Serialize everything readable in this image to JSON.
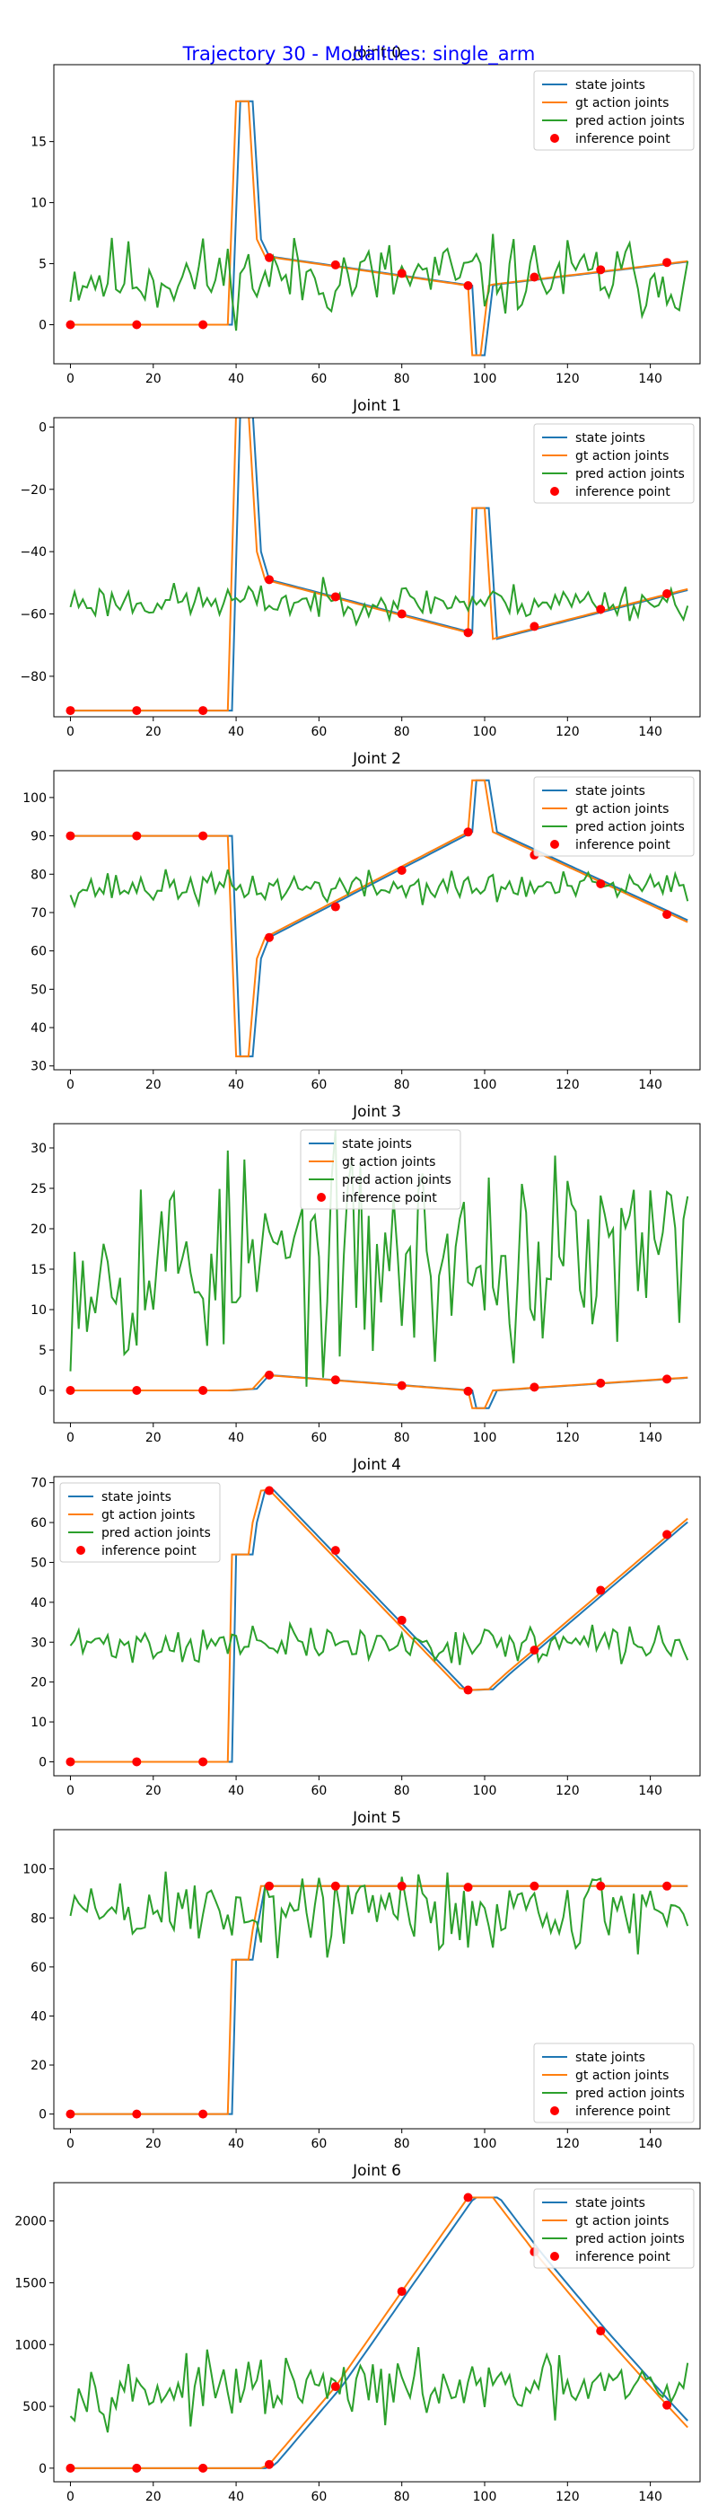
{
  "figure": {
    "title": "Trajectory 30 - Modalities: single_arm",
    "title_color": "#0000ff"
  },
  "colors": {
    "state": "#1f77b4",
    "gt": "#ff7f0e",
    "pred": "#2ca02c",
    "inference": "#ff0000"
  },
  "legend_labels": [
    "state joints",
    "gt action joints",
    "pred action joints",
    "inference point"
  ],
  "inference_x": [
    0,
    16,
    32,
    48,
    64,
    80,
    96,
    112,
    128,
    144
  ],
  "chart_data": [
    {
      "type": "line",
      "title": "Joint 0",
      "xlim": [
        -4,
        152
      ],
      "ylim": [
        -3.2,
        21.3
      ],
      "xticks": [
        0,
        20,
        40,
        60,
        80,
        100,
        120,
        140
      ],
      "yticks": [
        0,
        5,
        10,
        15
      ],
      "legend": "top-right",
      "gt_knots": [
        [
          0,
          0
        ],
        [
          38,
          0
        ],
        [
          40,
          18.3
        ],
        [
          43,
          18.3
        ],
        [
          45,
          7
        ],
        [
          47,
          5.6
        ],
        [
          96,
          3.2
        ],
        [
          97,
          -2.5
        ],
        [
          99,
          -2.5
        ],
        [
          101,
          3.2
        ],
        [
          102,
          3.3
        ],
        [
          149,
          5.2
        ]
      ],
      "state_lag": 1,
      "inference_y": [
        0,
        0,
        0,
        5.5,
        4.9,
        4.2,
        3.2,
        3.9,
        4.5,
        5.1
      ],
      "pred_mean": 3.9,
      "pred_amp": 1.6,
      "pred_seed": 11
    },
    {
      "type": "line",
      "title": "Joint 1",
      "xlim": [
        -4,
        152
      ],
      "ylim": [
        -93,
        3
      ],
      "xticks": [
        0,
        20,
        40,
        60,
        80,
        100,
        120,
        140
      ],
      "yticks": [
        -80,
        -60,
        -40,
        -20,
        0
      ],
      "legend": "top-right",
      "gt_knots": [
        [
          0,
          -91
        ],
        [
          38,
          -91
        ],
        [
          40,
          5
        ],
        [
          43,
          5
        ],
        [
          45,
          -40
        ],
        [
          47,
          -49
        ],
        [
          96,
          -66
        ],
        [
          97,
          -26
        ],
        [
          100,
          -26
        ],
        [
          102,
          -68
        ],
        [
          149,
          -52
        ]
      ],
      "state_lag": 1,
      "inference_y": [
        -91,
        -91,
        -91,
        -49,
        -54.5,
        -60,
        -66,
        -64,
        -58.5,
        -53.5
      ],
      "pred_mean": -56,
      "pred_amp": 2.8,
      "pred_seed": 23
    },
    {
      "type": "line",
      "title": "Joint 2",
      "xlim": [
        -4,
        152
      ],
      "ylim": [
        29,
        107
      ],
      "xticks": [
        0,
        20,
        40,
        60,
        80,
        100,
        120,
        140
      ],
      "yticks": [
        30,
        40,
        50,
        60,
        70,
        80,
        90,
        100
      ],
      "legend": "top-right",
      "gt_knots": [
        [
          0,
          90
        ],
        [
          38,
          90
        ],
        [
          40,
          32.5
        ],
        [
          43,
          32.5
        ],
        [
          45,
          58
        ],
        [
          47,
          63.5
        ],
        [
          96,
          91
        ],
        [
          97,
          104.5
        ],
        [
          100,
          104.5
        ],
        [
          102,
          91
        ],
        [
          149,
          67.5
        ]
      ],
      "state_lag": 1,
      "inference_y": [
        90,
        90,
        90,
        63.5,
        71.5,
        81,
        91,
        85,
        77.5,
        69.5
      ],
      "pred_mean": 76.5,
      "pred_amp": 2.1,
      "pred_seed": 37
    },
    {
      "type": "line",
      "title": "Joint 3",
      "xlim": [
        -4,
        152
      ],
      "ylim": [
        -4,
        33
      ],
      "xticks": [
        0,
        20,
        40,
        60,
        80,
        100,
        120,
        140
      ],
      "yticks": [
        0,
        5,
        10,
        15,
        20,
        25,
        30
      ],
      "legend": "top-center",
      "gt_knots": [
        [
          0,
          0
        ],
        [
          38,
          0
        ],
        [
          44,
          0.2
        ],
        [
          47,
          1.9
        ],
        [
          96,
          0
        ],
        [
          97,
          -2.2
        ],
        [
          100,
          -2.2
        ],
        [
          102,
          0
        ],
        [
          149,
          1.6
        ]
      ],
      "state_lag": 1,
      "inference_y": [
        0,
        0,
        0,
        1.9,
        1.3,
        0.6,
        -0.1,
        0.4,
        0.9,
        1.4
      ],
      "pred_mean": 16,
      "pred_amp": 6.5,
      "pred_seed": 53
    },
    {
      "type": "line",
      "title": "Joint 4",
      "xlim": [
        -4,
        152
      ],
      "ylim": [
        -3.5,
        71.5
      ],
      "xticks": [
        0,
        20,
        40,
        60,
        80,
        100,
        120,
        140
      ],
      "yticks": [
        0,
        10,
        20,
        30,
        40,
        50,
        60,
        70
      ],
      "legend": "top-left",
      "gt_knots": [
        [
          0,
          0
        ],
        [
          38,
          0
        ],
        [
          39,
          52
        ],
        [
          43,
          52
        ],
        [
          44,
          60
        ],
        [
          46,
          68
        ],
        [
          48,
          68.2
        ],
        [
          94,
          18.5
        ],
        [
          96,
          18
        ],
        [
          101,
          18.2
        ],
        [
          105,
          22
        ],
        [
          149,
          61
        ]
      ],
      "state_lag": 1,
      "inference_y": [
        0,
        0,
        0,
        68,
        53,
        35.5,
        18,
        28,
        43,
        57
      ],
      "pred_mean": 29.5,
      "pred_amp": 2.3,
      "pred_seed": 71
    },
    {
      "type": "line",
      "title": "Joint 5",
      "xlim": [
        -4,
        152
      ],
      "ylim": [
        -6,
        116
      ],
      "xticks": [
        0,
        20,
        40,
        60,
        80,
        100,
        120,
        140
      ],
      "yticks": [
        0,
        20,
        40,
        60,
        80,
        100
      ],
      "legend": "bottom-right",
      "gt_knots": [
        [
          0,
          0
        ],
        [
          38,
          0
        ],
        [
          39,
          63
        ],
        [
          43,
          63
        ],
        [
          44,
          75
        ],
        [
          46,
          93
        ],
        [
          149,
          93
        ]
      ],
      "state_lag": 1,
      "inference_y": [
        0,
        0,
        0,
        93,
        93,
        93,
        92.5,
        93,
        93,
        93
      ],
      "pred_mean": 83,
      "pred_amp": 9,
      "pred_seed": 89
    },
    {
      "type": "line",
      "title": "Joint 6",
      "xlim": [
        -4,
        152
      ],
      "ylim": [
        -110,
        2310
      ],
      "xticks": [
        0,
        20,
        40,
        60,
        80,
        100,
        120,
        140
      ],
      "yticks": [
        0,
        500,
        1000,
        1500,
        2000
      ],
      "legend": "top-right",
      "gt_knots": [
        [
          0,
          0
        ],
        [
          46,
          0
        ],
        [
          48,
          30
        ],
        [
          64,
          660
        ],
        [
          80,
          1430
        ],
        [
          96,
          2190
        ],
        [
          102,
          2190
        ],
        [
          112,
          1750
        ],
        [
          128,
          1110
        ],
        [
          144,
          510
        ],
        [
          149,
          330
        ]
      ],
      "state_lag": 1.5,
      "inference_y": [
        0,
        0,
        0,
        30,
        660,
        1430,
        2190,
        1750,
        1110,
        510
      ],
      "pred_mean": 640,
      "pred_amp": 120,
      "pred_seed": 97
    }
  ]
}
